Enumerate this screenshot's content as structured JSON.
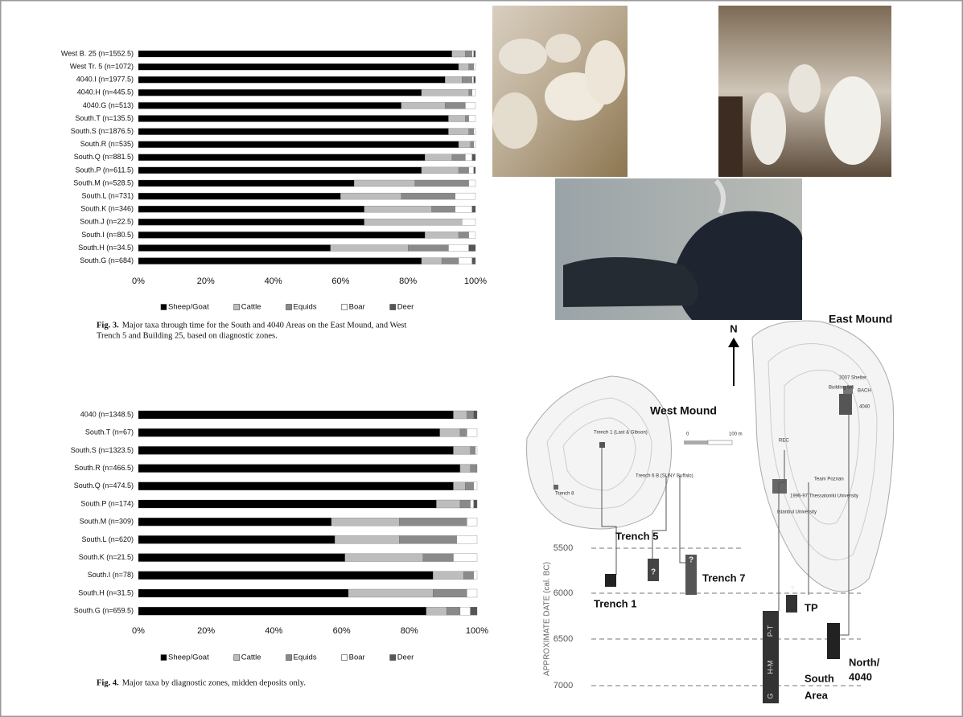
{
  "chart_data": [
    {
      "type": "stacked-barh",
      "categories": [
        "West B. 25 (n=1552.5)",
        "West Tr. 5 (n=1072)",
        "4040.I (n=1977.5)",
        "4040.H (n=445.5)",
        "4040.G (n=513)",
        "South.T (n=135.5)",
        "South.S (n=1876.5)",
        "South.R (n=535)",
        "South.Q (n=881.5)",
        "South.P (n=611.5)",
        "South.M (n=528.5)",
        "South.L (n=731)",
        "South.K (n=346)",
        "South.J (n=22.5)",
        "South.I (n=80.5)",
        "South.H (n=34.5)",
        "South.G (n=684)"
      ],
      "series": [
        {
          "name": "Sheep/Goat",
          "color": "#000000",
          "values": [
            93,
            95,
            91,
            84,
            78,
            92,
            92,
            95,
            85,
            84,
            64,
            60,
            67,
            67,
            85,
            57,
            84
          ]
        },
        {
          "name": "Cattle",
          "color": "#bdbdbd",
          "values": [
            4,
            3,
            5,
            14,
            13,
            5,
            6,
            3.5,
            8,
            11,
            18,
            18,
            20,
            29,
            10,
            23,
            6
          ]
        },
        {
          "name": "Equids",
          "color": "#8a8a8a",
          "values": [
            2,
            1.5,
            3,
            1,
            6,
            1,
            1.5,
            1,
            4,
            3,
            16,
            16,
            7,
            0,
            3,
            12,
            5
          ]
        },
        {
          "name": "Boar",
          "color": "#ffffff",
          "values": [
            0.5,
            0.5,
            0.5,
            1,
            3,
            2,
            0.5,
            0.5,
            2,
            1.5,
            2,
            6,
            5,
            4,
            2,
            6,
            4
          ]
        },
        {
          "name": "Deer",
          "color": "#555555",
          "values": [
            0.5,
            0,
            0.5,
            0,
            0,
            0,
            0,
            0,
            1,
            0.5,
            0,
            0,
            1,
            0,
            0,
            2,
            1
          ]
        }
      ],
      "xlim": [
        0,
        100
      ],
      "xticks": [
        {
          "value": 0,
          "label": "0%"
        },
        {
          "value": 20,
          "label": "20%"
        },
        {
          "value": 40,
          "label": "40%"
        },
        {
          "value": 60,
          "label": "60%"
        },
        {
          "value": 80,
          "label": "80%"
        },
        {
          "value": 100,
          "label": "100%"
        }
      ],
      "caption_label": "Fig. 3.",
      "caption_lines": [
        "Major taxa through time for the South and 4040 Areas on the East Mound, and West",
        "Trench 5 and Building 25, based on diagnostic zones."
      ]
    },
    {
      "type": "stacked-barh",
      "categories": [
        "4040 (n=1348.5)",
        "South.T (n=67)",
        "South.S (n=1323.5)",
        "South.R (n=466.5)",
        "South.Q (n=474.5)",
        "South.P (n=174)",
        "South.M (n=309)",
        "South.L (n=620)",
        "South.K (n=21.5)",
        "South.I (n=78)",
        "South.H (n=31.5)",
        "South.G (n=659.5)"
      ],
      "series": [
        {
          "name": "Sheep/Goat",
          "color": "#000000",
          "values": [
            93,
            89,
            93,
            95,
            93,
            88,
            57,
            58,
            61,
            87,
            62,
            85
          ]
        },
        {
          "name": "Cattle",
          "color": "#bdbdbd",
          "values": [
            4,
            6,
            5,
            3,
            3.5,
            7,
            20,
            19,
            23,
            9,
            25,
            6
          ]
        },
        {
          "name": "Equids",
          "color": "#8a8a8a",
          "values": [
            2,
            2,
            1.5,
            2,
            2.5,
            3,
            20,
            17,
            9,
            3,
            10,
            4
          ]
        },
        {
          "name": "Boar",
          "color": "#ffffff",
          "values": [
            0,
            3,
            0.5,
            0,
            1,
            1,
            3,
            6,
            7,
            1,
            3,
            3
          ]
        },
        {
          "name": "Deer",
          "color": "#555555",
          "values": [
            1,
            0,
            0,
            0,
            0,
            1,
            0,
            0,
            0,
            0,
            0,
            2
          ]
        }
      ],
      "xlim": [
        0,
        100
      ],
      "xticks": [
        {
          "value": 0,
          "label": "0%"
        },
        {
          "value": 20,
          "label": "20%"
        },
        {
          "value": 40,
          "label": "40%"
        },
        {
          "value": 60,
          "label": "60%"
        },
        {
          "value": 80,
          "label": "80%"
        },
        {
          "value": 100,
          "label": "100%"
        }
      ],
      "caption_label": "Fig. 4.",
      "caption_lines": [
        "Major taxa by diagnostic zones, midden deposits only."
      ]
    }
  ],
  "map": {
    "labels": [
      "N",
      "East Mound",
      "West Mound",
      "0",
      "100 m",
      "Trench 1 (Last & Gibson)",
      "Trench 8",
      "Trench 6 B (SUNY Buffalo)",
      "2007 Shelter",
      "Building 5/6",
      "BACH",
      "4040",
      "REC",
      "Team Poznan",
      "1996-97 Thessaloniki University",
      "Istanbul University",
      "Trench 5",
      "Trench 7",
      "Trench 1",
      "TP",
      "South",
      "Area",
      "North/",
      "4040",
      "5500",
      "6000",
      "6500",
      "7000",
      "APPROXIMATE DATE (cal. BC)",
      "G",
      "H-M",
      "P-T",
      "?",
      "?",
      "?"
    ]
  }
}
